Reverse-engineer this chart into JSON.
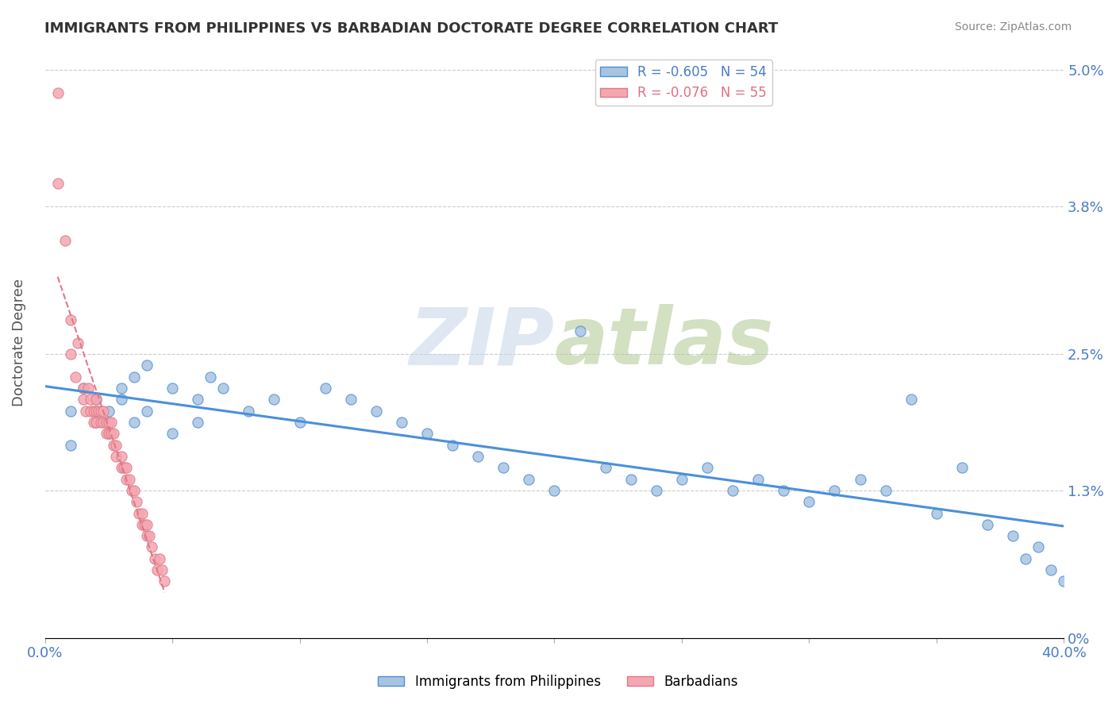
{
  "title": "IMMIGRANTS FROM PHILIPPINES VS BARBADIAN DOCTORATE DEGREE CORRELATION CHART",
  "source": "Source: ZipAtlas.com",
  "ylabel": "Doctorate Degree",
  "xlim": [
    0.0,
    0.4
  ],
  "ylim": [
    0.0,
    0.052
  ],
  "xtick_positions": [
    0.0,
    0.05,
    0.1,
    0.15,
    0.2,
    0.25,
    0.3,
    0.35,
    0.4
  ],
  "xtick_labels": [
    "0.0%",
    "",
    "",
    "",
    "",
    "",
    "",
    "",
    "40.0%"
  ],
  "ytick_labels_right": [
    "0%",
    "1.3%",
    "2.5%",
    "3.8%",
    "5.0%"
  ],
  "yticks_right": [
    0.0,
    0.013,
    0.025,
    0.038,
    0.05
  ],
  "legend_labels": [
    "Immigrants from Philippines",
    "Barbadians"
  ],
  "legend_r": [
    -0.605,
    -0.076
  ],
  "legend_n": [
    54,
    55
  ],
  "blue_fill": "#a8c4e0",
  "pink_fill": "#f4a7b0",
  "blue_edge": "#4a90d9",
  "pink_edge": "#e07888",
  "blue_line": "#4a90d9",
  "pink_line": "#e07888",
  "title_color": "#333333",
  "blue_scatter_x": [
    0.01,
    0.01,
    0.015,
    0.02,
    0.02,
    0.025,
    0.025,
    0.03,
    0.03,
    0.035,
    0.035,
    0.04,
    0.04,
    0.05,
    0.05,
    0.06,
    0.06,
    0.065,
    0.07,
    0.08,
    0.09,
    0.1,
    0.11,
    0.12,
    0.13,
    0.14,
    0.15,
    0.16,
    0.17,
    0.18,
    0.19,
    0.2,
    0.21,
    0.22,
    0.23,
    0.24,
    0.25,
    0.26,
    0.27,
    0.28,
    0.29,
    0.3,
    0.31,
    0.32,
    0.33,
    0.34,
    0.35,
    0.36,
    0.37,
    0.38,
    0.39,
    0.385,
    0.395,
    0.4
  ],
  "blue_scatter_y": [
    0.02,
    0.017,
    0.022,
    0.021,
    0.019,
    0.02,
    0.018,
    0.022,
    0.021,
    0.023,
    0.019,
    0.024,
    0.02,
    0.022,
    0.018,
    0.021,
    0.019,
    0.023,
    0.022,
    0.02,
    0.021,
    0.019,
    0.022,
    0.021,
    0.02,
    0.019,
    0.018,
    0.017,
    0.016,
    0.015,
    0.014,
    0.013,
    0.027,
    0.015,
    0.014,
    0.013,
    0.014,
    0.015,
    0.013,
    0.014,
    0.013,
    0.012,
    0.013,
    0.014,
    0.013,
    0.021,
    0.011,
    0.015,
    0.01,
    0.009,
    0.008,
    0.007,
    0.006,
    0.005
  ],
  "pink_scatter_x": [
    0.005,
    0.005,
    0.008,
    0.01,
    0.01,
    0.012,
    0.013,
    0.015,
    0.015,
    0.016,
    0.017,
    0.018,
    0.018,
    0.019,
    0.019,
    0.02,
    0.02,
    0.02,
    0.021,
    0.022,
    0.022,
    0.023,
    0.023,
    0.024,
    0.024,
    0.025,
    0.025,
    0.026,
    0.026,
    0.027,
    0.027,
    0.028,
    0.028,
    0.03,
    0.03,
    0.031,
    0.032,
    0.032,
    0.033,
    0.034,
    0.035,
    0.036,
    0.037,
    0.038,
    0.038,
    0.039,
    0.04,
    0.04,
    0.041,
    0.042,
    0.043,
    0.044,
    0.045,
    0.046,
    0.047
  ],
  "pink_scatter_y": [
    0.048,
    0.04,
    0.035,
    0.028,
    0.025,
    0.023,
    0.026,
    0.022,
    0.021,
    0.02,
    0.022,
    0.02,
    0.021,
    0.019,
    0.02,
    0.02,
    0.019,
    0.021,
    0.02,
    0.019,
    0.02,
    0.019,
    0.02,
    0.019,
    0.018,
    0.019,
    0.018,
    0.019,
    0.018,
    0.017,
    0.018,
    0.017,
    0.016,
    0.015,
    0.016,
    0.015,
    0.014,
    0.015,
    0.014,
    0.013,
    0.013,
    0.012,
    0.011,
    0.01,
    0.011,
    0.01,
    0.009,
    0.01,
    0.009,
    0.008,
    0.007,
    0.006,
    0.007,
    0.006,
    0.005
  ]
}
